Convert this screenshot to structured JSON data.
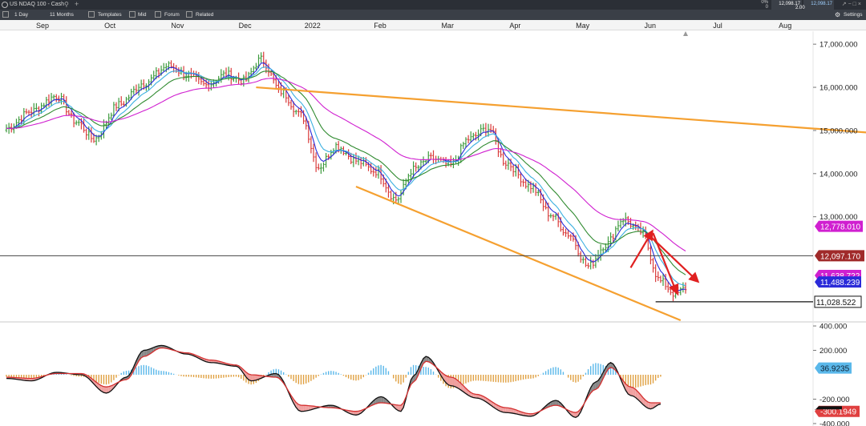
{
  "window": {
    "title": "US NDAQ 100 - Cash",
    "search_icon": "search-icon",
    "add_tab": "+",
    "quote": {
      "change_pct": "0%",
      "change_val": "0",
      "sell": "12,098.17",
      "buy": "12,098.17",
      "spread": "2.00"
    }
  },
  "toolbar": {
    "interval": "1 Day",
    "range": "11 Months",
    "templates": "Templates",
    "mid": "Mid",
    "forum": "Forum",
    "related": "Related",
    "settings": "Settings"
  },
  "colors": {
    "bull": "#3d9a3d",
    "bear": "#d93a3a",
    "ma_fast": "#2b2bd9",
    "ma_mid": "#3bb0e0",
    "ma_slow": "#2f8a2f",
    "ma_long": "#d020d0",
    "channel": "#f5a030",
    "macd": "#111111",
    "signal": "#d43030",
    "hist_pos": "#5ab8ea",
    "hist_neg": "#e0a040"
  },
  "chart_data": [
    {
      "type": "candlestick",
      "title": "",
      "months": [
        "Sep",
        "Oct",
        "Nov",
        "Dec",
        "2022",
        "Feb",
        "Mar",
        "Apr",
        "May",
        "Jun",
        "Jul",
        "Aug"
      ],
      "ylim": [
        10600,
        17300
      ],
      "yticks": [
        "17,000.000",
        "16,000.000",
        "15,000.000",
        "14,000.000",
        "13,000.000"
      ],
      "ytick_values": [
        17000,
        16000,
        15000,
        14000,
        13000
      ],
      "anchors": [
        [
          0,
          15050
        ],
        [
          10,
          15450
        ],
        [
          20,
          15800
        ],
        [
          28,
          15200
        ],
        [
          35,
          14800
        ],
        [
          45,
          15600
        ],
        [
          55,
          16100
        ],
        [
          65,
          16500
        ],
        [
          72,
          16300
        ],
        [
          80,
          16050
        ],
        [
          88,
          16300
        ],
        [
          95,
          16150
        ],
        [
          102,
          16650
        ],
        [
          110,
          15900
        ],
        [
          118,
          15350
        ],
        [
          125,
          14150
        ],
        [
          132,
          14650
        ],
        [
          140,
          14300
        ],
        [
          148,
          14050
        ],
        [
          156,
          13400
        ],
        [
          163,
          14100
        ],
        [
          170,
          14350
        ],
        [
          178,
          14200
        ],
        [
          185,
          14800
        ],
        [
          193,
          15050
        ],
        [
          200,
          14250
        ],
        [
          210,
          13700
        ],
        [
          218,
          13050
        ],
        [
          225,
          12600
        ],
        [
          233,
          11850
        ],
        [
          240,
          12350
        ],
        [
          247,
          12950
        ],
        [
          254,
          12650
        ],
        [
          262,
          11500
        ],
        [
          268,
          11200
        ],
        [
          272,
          11350
        ]
      ],
      "last_index": 272,
      "price_labels": {
        "ma_long": "12,778.010",
        "ma_short_a": "11,638.722",
        "ma_short_b": "11,488.239",
        "last_price": "12,097.170",
        "support": "11,028.522"
      },
      "levels": {
        "last_price": 12097.17,
        "support": 11028.522,
        "ma_long": 12778.01,
        "ma_fast": 11488.239
      },
      "channel": {
        "upper": {
          "from": [
            100,
            16000
          ],
          "to": [
            999,
            12150
          ]
        },
        "lower": {
          "from": [
            140,
            13700
          ],
          "to": [
            270,
            10600
          ]
        }
      },
      "projections": [
        {
          "from": [
            250,
            11820
          ],
          "to": [
            258,
            12600
          ]
        },
        {
          "from": [
            259,
            12620
          ],
          "to": [
            268,
            11300
          ]
        },
        {
          "from": [
            258,
            12540
          ],
          "to": [
            276,
            11550
          ]
        }
      ]
    },
    {
      "type": "macd",
      "ylim": [
        -420,
        420
      ],
      "yticks": [
        "400.000",
        "200.000",
        "-200.000",
        "-400.000"
      ],
      "ytick_values": [
        400,
        200,
        -200,
        -400
      ],
      "value_labels": {
        "histogram": "36.9235",
        "macd": "-300.1949"
      },
      "macd_anchors": [
        [
          0,
          -30
        ],
        [
          10,
          -50
        ],
        [
          20,
          20
        ],
        [
          30,
          0
        ],
        [
          40,
          -150
        ],
        [
          48,
          -20
        ],
        [
          55,
          200
        ],
        [
          62,
          240
        ],
        [
          72,
          170
        ],
        [
          82,
          100
        ],
        [
          92,
          70
        ],
        [
          98,
          -50
        ],
        [
          108,
          10
        ],
        [
          118,
          -300
        ],
        [
          130,
          -250
        ],
        [
          140,
          -330
        ],
        [
          150,
          -180
        ],
        [
          158,
          -300
        ],
        [
          163,
          -10
        ],
        [
          168,
          150
        ],
        [
          178,
          -90
        ],
        [
          188,
          -190
        ],
        [
          200,
          -310
        ],
        [
          210,
          -340
        ],
        [
          220,
          -210
        ],
        [
          228,
          -350
        ],
        [
          236,
          -60
        ],
        [
          242,
          100
        ],
        [
          250,
          -170
        ],
        [
          258,
          -280
        ],
        [
          262,
          -240
        ]
      ],
      "signal_anchors": [
        [
          0,
          -20
        ],
        [
          10,
          -30
        ],
        [
          20,
          10
        ],
        [
          30,
          10
        ],
        [
          40,
          -100
        ],
        [
          48,
          -40
        ],
        [
          55,
          150
        ],
        [
          62,
          220
        ],
        [
          72,
          180
        ],
        [
          82,
          120
        ],
        [
          92,
          80
        ],
        [
          98,
          0
        ],
        [
          108,
          -20
        ],
        [
          118,
          -250
        ],
        [
          130,
          -270
        ],
        [
          140,
          -300
        ],
        [
          150,
          -230
        ],
        [
          158,
          -250
        ],
        [
          163,
          -60
        ],
        [
          168,
          110
        ],
        [
          178,
          -20
        ],
        [
          188,
          -160
        ],
        [
          200,
          -270
        ],
        [
          210,
          -320
        ],
        [
          220,
          -250
        ],
        [
          228,
          -310
        ],
        [
          236,
          -120
        ],
        [
          242,
          60
        ],
        [
          250,
          -100
        ],
        [
          258,
          -230
        ],
        [
          262,
          -230
        ]
      ]
    }
  ]
}
